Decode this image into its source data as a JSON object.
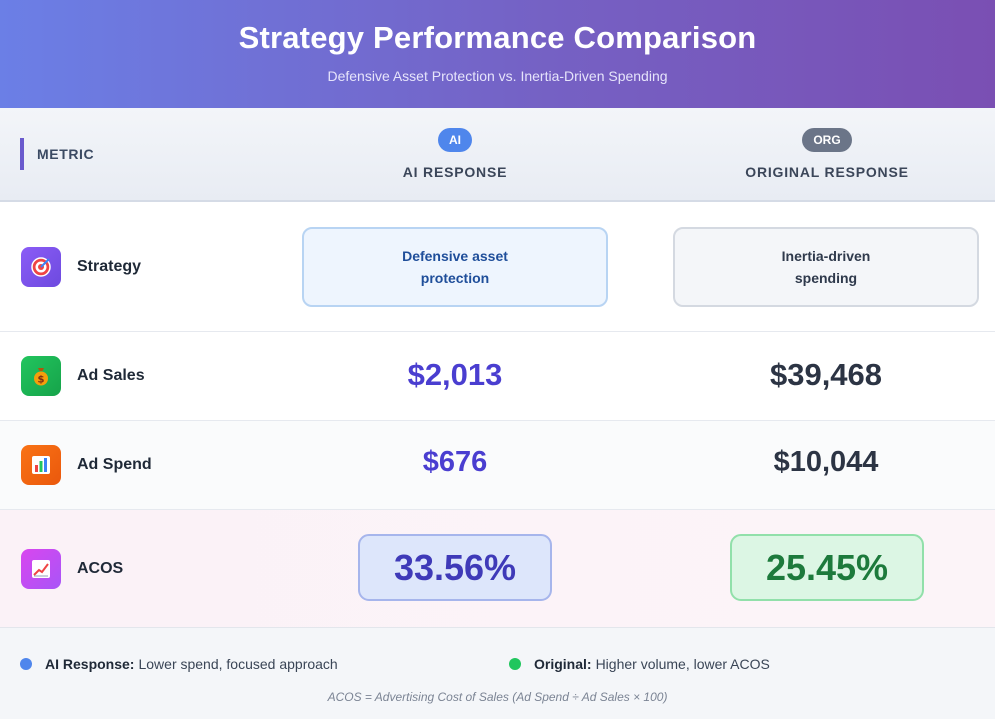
{
  "header": {
    "title": "Strategy Performance Comparison",
    "subtitle": "Defensive Asset Protection vs. Inertia-Driven Spending"
  },
  "columns": {
    "metric_label": "METRIC",
    "ai": {
      "badge": "AI",
      "title": "AI RESPONSE"
    },
    "org": {
      "badge": "ORG",
      "title": "ORIGINAL RESPONSE"
    }
  },
  "rows": {
    "strategy": {
      "label": "Strategy",
      "icon": "target-icon",
      "ai_line1": "Defensive asset",
      "ai_line2": "protection",
      "org_line1": "Inertia-driven",
      "org_line2": "spending"
    },
    "ad_sales": {
      "label": "Ad Sales",
      "icon": "money-bag-icon",
      "ai": "$2,013",
      "org": "$39,468"
    },
    "ad_spend": {
      "label": "Ad Spend",
      "icon": "bar-chart-icon",
      "ai": "$676",
      "org": "$10,044"
    },
    "acos": {
      "label": "ACOS",
      "icon": "trend-chart-icon",
      "ai": "33.56%",
      "org": "25.45%"
    }
  },
  "legend": {
    "ai_label": "AI Response:",
    "ai_text": "Lower spend, focused approach",
    "org_label": "Original:",
    "org_text": "Higher volume, lower ACOS"
  },
  "formula": "ACOS = Advertising Cost of Sales (Ad Spend ÷ Ad Sales × 100)",
  "colors": {
    "ai_accent": "#4f86ec",
    "org_accent": "#6b7588",
    "ai_value": "#4a3ed0",
    "org_acos": "#1d7a3c"
  }
}
